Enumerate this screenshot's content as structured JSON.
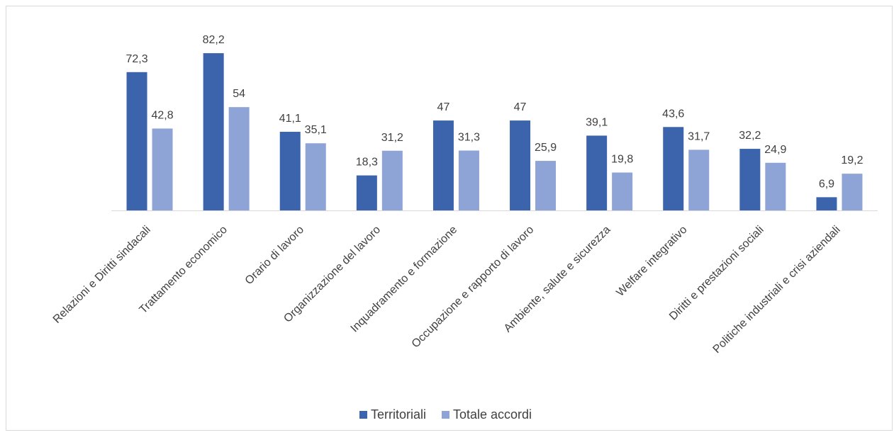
{
  "chart_data": {
    "type": "bar",
    "categories": [
      "Relazioni e Diritti sindacali",
      "Trattamento economico",
      "Orario di lavoro",
      "Organizzazione del lavoro",
      "Inquadramento e formazione",
      "Occupazione e rapporto di lavoro",
      "Ambiente, salute e sicurezza",
      "Welfare integrativo",
      "Diritti e prestazioni sociali",
      "Politiche industriali e crisi aziendali"
    ],
    "series": [
      {
        "name": "Territoriali",
        "color": "#3b64ad",
        "values": [
          72.3,
          82.2,
          41.1,
          18.3,
          47,
          47,
          39.1,
          43.6,
          32.2,
          6.9
        ],
        "labels": [
          "72,3",
          "82,2",
          "41,1",
          "18,3",
          "47",
          "47",
          "39,1",
          "43,6",
          "32,2",
          "6,9"
        ]
      },
      {
        "name": "Totale accordi",
        "color": "#8fa4d6",
        "values": [
          42.8,
          54,
          35.1,
          31.2,
          31.3,
          25.9,
          19.8,
          31.7,
          24.9,
          19.2
        ],
        "labels": [
          "42,8",
          "54",
          "35,1",
          "31,2",
          "31,3",
          "25,9",
          "19,8",
          "31,7",
          "24,9",
          "19,2"
        ]
      }
    ],
    "ylim": [
      0,
      100
    ],
    "grid": false,
    "legend_position": "bottom"
  }
}
